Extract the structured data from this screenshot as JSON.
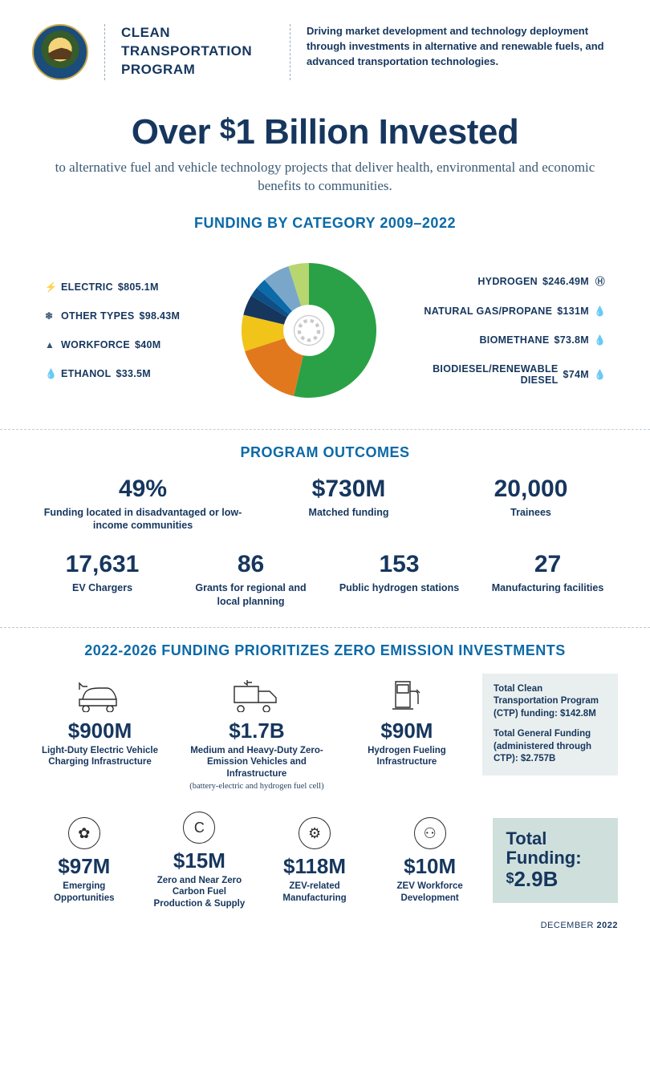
{
  "header": {
    "program_title_l1": "CLEAN",
    "program_title_l2": "TRANSPORTATION",
    "program_title_l3": "PROGRAM",
    "tagline": "Driving market development and technology deployment through investments in alternative and renewable fuels, and advanced transportation technologies."
  },
  "headline": {
    "pre": "Over ",
    "dollar": "$",
    "post": "1 Billion Invested",
    "sub": "to alternative fuel and vehicle technology projects that deliver health, environmental and economic benefits to communities."
  },
  "funding_chart": {
    "title": "FUNDING BY CATEGORY 2009–2022",
    "type": "donut",
    "inner_radius_pct": 38,
    "hub_radius_pct": 22,
    "background_color": "#ffffff",
    "left_items": [
      {
        "icon": "⚡",
        "label": "ELECTRIC",
        "amount": "$805.1M",
        "value": 805.1,
        "color": "#2aa147"
      },
      {
        "icon": "❄",
        "label": "OTHER TYPES",
        "amount": "$98.43M",
        "value": 98.43,
        "color": "#7aa7c9"
      },
      {
        "icon": "▲",
        "label": "WORKFORCE",
        "amount": "$40M",
        "value": 40.0,
        "color": "#0b6aa8"
      },
      {
        "icon": "💧",
        "label": "ETHANOL",
        "amount": "$33.5M",
        "value": 33.5,
        "color": "#0d4f86"
      }
    ],
    "right_items": [
      {
        "icon": "Ⓗ",
        "label": "HYDROGEN",
        "amount": "$246.49M",
        "value": 246.49,
        "color": "#e2781d"
      },
      {
        "icon": "💧",
        "label": "NATURAL GAS/PROPANE",
        "amount": "$131M",
        "value": 131.0,
        "color": "#f0c419"
      },
      {
        "icon": "💧",
        "label": "BIOMETHANE",
        "amount": "$73.8M",
        "value": 73.8,
        "color": "#b7d66f"
      },
      {
        "icon": "💧",
        "label": "BIODIESEL/RENEWABLE DIESEL",
        "amount": "$74M",
        "value": 74.0,
        "color": "#16365e"
      }
    ],
    "slice_order": [
      "ELECTRIC",
      "HYDROGEN",
      "NATURAL GAS/PROPANE",
      "BIODIESEL/RENEWABLE DIESEL",
      "ETHANOL",
      "WORKFORCE",
      "OTHER TYPES",
      "BIOMETHANE"
    ]
  },
  "outcomes": {
    "title": "PROGRAM OUTCOMES",
    "row1": [
      {
        "big": "49%",
        "small": "Funding located in disadvantaged or low-income communities"
      },
      {
        "big": "$730M",
        "small": "Matched funding"
      },
      {
        "big": "20,000",
        "small": "Trainees"
      }
    ],
    "row2": [
      {
        "big": "17,631",
        "small": "EV Chargers"
      },
      {
        "big": "86",
        "small": "Grants for regional and local planning"
      },
      {
        "big": "153",
        "small": "Public hydrogen stations"
      },
      {
        "big": "27",
        "small": "Manufacturing facilities"
      }
    ]
  },
  "investments": {
    "title": "2022-2026 FUNDING PRIORITIZES ZERO EMISSION INVESTMENTS",
    "top": [
      {
        "icon": "car",
        "amt": "$900M",
        "desc": "Light-Duty Electric Vehicle Charging Infrastructure",
        "sub": ""
      },
      {
        "icon": "truck",
        "amt": "$1.7B",
        "desc": "Medium and Heavy-Duty Zero-Emission Vehicles and Infrastructure",
        "sub": "(battery-electric and hydrogen fuel cell)"
      },
      {
        "icon": "pump",
        "amt": "$90M",
        "desc": "Hydrogen Fueling Infrastructure",
        "sub": ""
      }
    ],
    "side": {
      "l1": "Total Clean Transportation Program (CTP) funding: $142.8M",
      "l2": "Total General Funding (administered through CTP): $2.757B"
    },
    "bottom": [
      {
        "glyph": "✿",
        "amt": "$97M",
        "desc": "Emerging Opportunities"
      },
      {
        "glyph": "C",
        "amt": "$15M",
        "desc": "Zero and Near Zero Carbon Fuel Production & Supply"
      },
      {
        "glyph": "⚙",
        "amt": "$118M",
        "desc": "ZEV-related Manufacturing"
      },
      {
        "glyph": "⚇",
        "amt": "$10M",
        "desc": "ZEV Workforce Development"
      }
    ],
    "total": {
      "label": "Total Funding:",
      "amount_sm": "$",
      "amount": "2.9B"
    }
  },
  "footer": {
    "month": "DECEMBER ",
    "year": "2022"
  },
  "colors": {
    "heading": "#16365e",
    "section_title": "#0b6aa8",
    "side_box_bg": "#e9efee",
    "total_box_bg": "#cfe0dc"
  }
}
